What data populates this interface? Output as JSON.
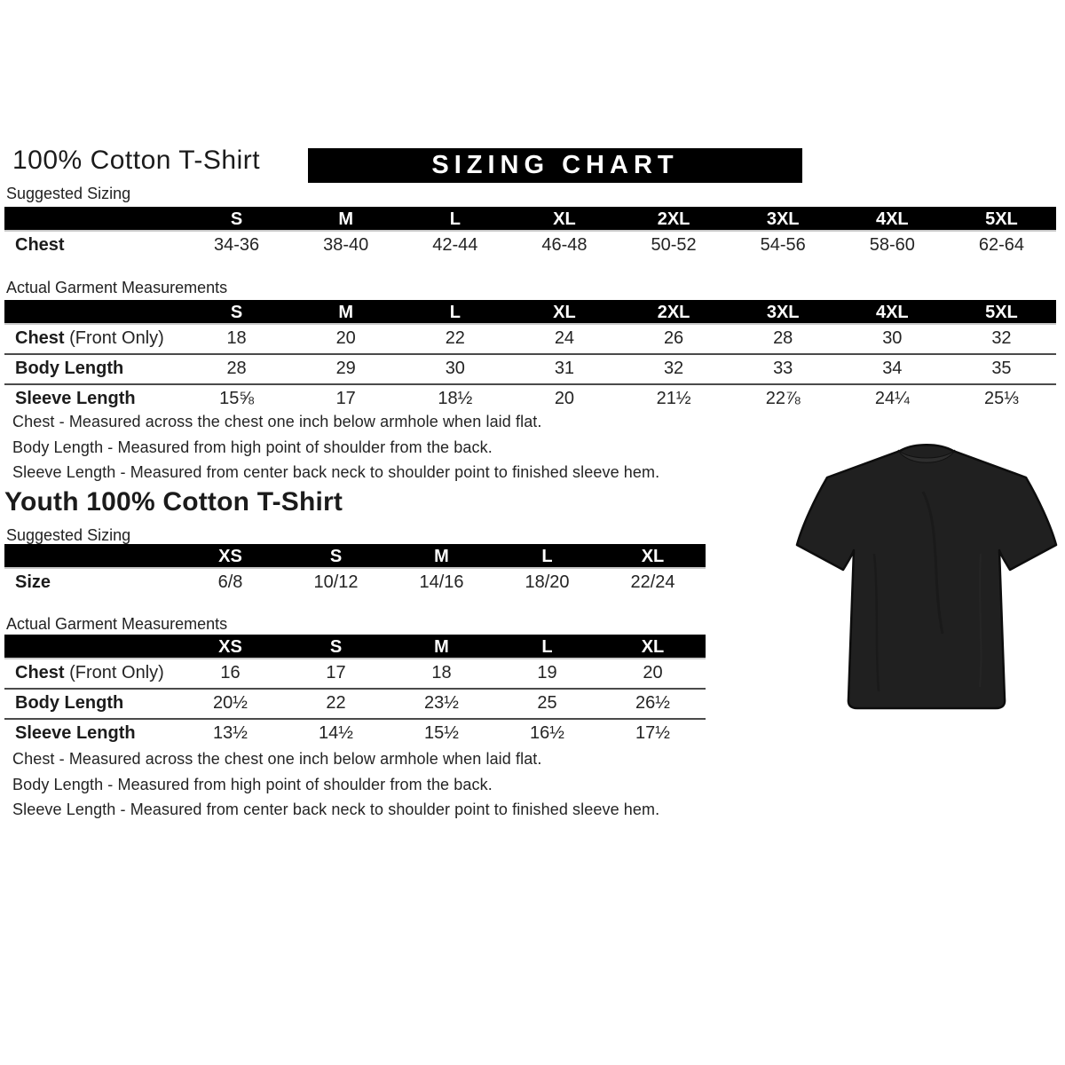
{
  "page": {
    "adult_title": "100% Cotton T-Shirt",
    "banner": "SIZING CHART",
    "youth_title": "Youth 100% Cotton T-Shirt"
  },
  "labels": {
    "suggested": "Suggested Sizing",
    "actual": "Actual Garment Measurements"
  },
  "adult": {
    "suggested": {
      "columns": [
        "S",
        "M",
        "L",
        "XL",
        "2XL",
        "3XL",
        "4XL",
        "5XL"
      ],
      "rows": [
        {
          "label": "Chest",
          "label_suffix": "",
          "values": [
            "34-36",
            "38-40",
            "42-44",
            "46-48",
            "50-52",
            "54-56",
            "58-60",
            "62-64"
          ]
        }
      ]
    },
    "measurements": {
      "columns": [
        "S",
        "M",
        "L",
        "XL",
        "2XL",
        "3XL",
        "4XL",
        "5XL"
      ],
      "rows": [
        {
          "label": "Chest",
          "label_suffix": " (Front Only)",
          "values": [
            "18",
            "20",
            "22",
            "24",
            "26",
            "28",
            "30",
            "32"
          ]
        },
        {
          "label": "Body Length",
          "label_suffix": "",
          "values": [
            "28",
            "29",
            "30",
            "31",
            "32",
            "33",
            "34",
            "35"
          ]
        },
        {
          "label": "Sleeve Length",
          "label_suffix": "",
          "values": [
            "15⅝",
            "17",
            "18½",
            "20",
            "21½",
            "22⅞",
            "24¼",
            "25⅓"
          ]
        }
      ]
    }
  },
  "youth": {
    "suggested": {
      "columns": [
        "XS",
        "S",
        "M",
        "L",
        "XL"
      ],
      "rows": [
        {
          "label": "Size",
          "label_suffix": "",
          "values": [
            "6/8",
            "10/12",
            "14/16",
            "18/20",
            "22/24"
          ]
        }
      ]
    },
    "measurements": {
      "columns": [
        "XS",
        "S",
        "M",
        "L",
        "XL"
      ],
      "rows": [
        {
          "label": "Chest",
          "label_suffix": " (Front Only)",
          "values": [
            "16",
            "17",
            "18",
            "19",
            "20"
          ]
        },
        {
          "label": "Body Length",
          "label_suffix": "",
          "values": [
            "20½",
            "22",
            "23½",
            "25",
            "26½"
          ]
        },
        {
          "label": "Sleeve Length",
          "label_suffix": "",
          "values": [
            "13½",
            "14½",
            "15½",
            "16½",
            "17½"
          ]
        }
      ]
    }
  },
  "notes": [
    "Chest - Measured across the chest one inch below armhole when laid flat.",
    "Body Length - Measured from high point of shoulder from the back.",
    "Sleeve Length - Measured from center back neck to shoulder point to finished sleeve hem."
  ],
  "tshirt": {
    "name": "black 100% cotton t-shirt product photo",
    "body_color": "#202020",
    "collar_color": "#2e2e2e",
    "outline_color": "#0d0d0d"
  },
  "colors": {
    "banner_bg": "#000000",
    "banner_text": "#ffffff",
    "table_header_bg": "#000000",
    "table_header_text": "#ffffff",
    "row_separator": "#4a4a4a"
  }
}
